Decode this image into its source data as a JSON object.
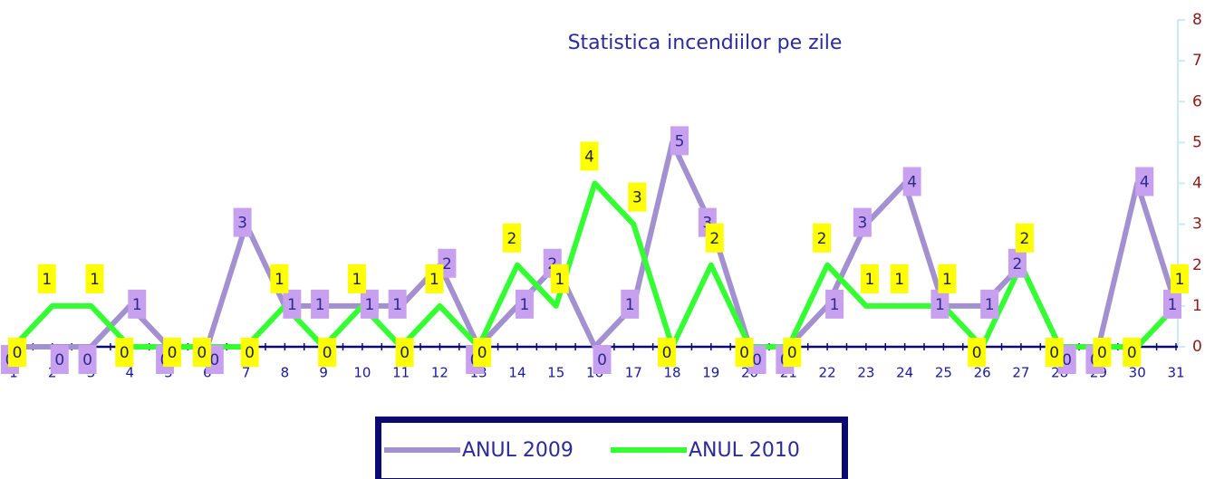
{
  "chart_data": {
    "type": "line",
    "title": "Statistica incendiilor pe zile",
    "categories": [
      1,
      2,
      3,
      4,
      5,
      6,
      7,
      8,
      9,
      10,
      11,
      12,
      13,
      14,
      15,
      16,
      17,
      18,
      19,
      20,
      21,
      22,
      23,
      24,
      25,
      26,
      27,
      28,
      29,
      30,
      31
    ],
    "series": [
      {
        "name": "ANUL 2009",
        "color": "#a390d0",
        "values": [
          0,
          0,
          0,
          1,
          0,
          0,
          3,
          1,
          1,
          1,
          1,
          2,
          0,
          1,
          2,
          0,
          1,
          5,
          3,
          0,
          0,
          1,
          3,
          4,
          1,
          1,
          2,
          0,
          0,
          4,
          1
        ]
      },
      {
        "name": "ANUL 2010",
        "color": "#33ff33",
        "values": [
          0,
          1,
          1,
          0,
          0,
          0,
          0,
          1,
          0,
          1,
          0,
          1,
          0,
          2,
          1,
          4,
          3,
          0,
          2,
          0,
          0,
          2,
          1,
          1,
          1,
          0,
          2,
          0,
          0,
          0,
          1
        ]
      }
    ],
    "ylim": [
      0,
      8
    ],
    "yticks": [
      0,
      1,
      2,
      3,
      4,
      5,
      6,
      7,
      8
    ],
    "legend": "bottom"
  }
}
